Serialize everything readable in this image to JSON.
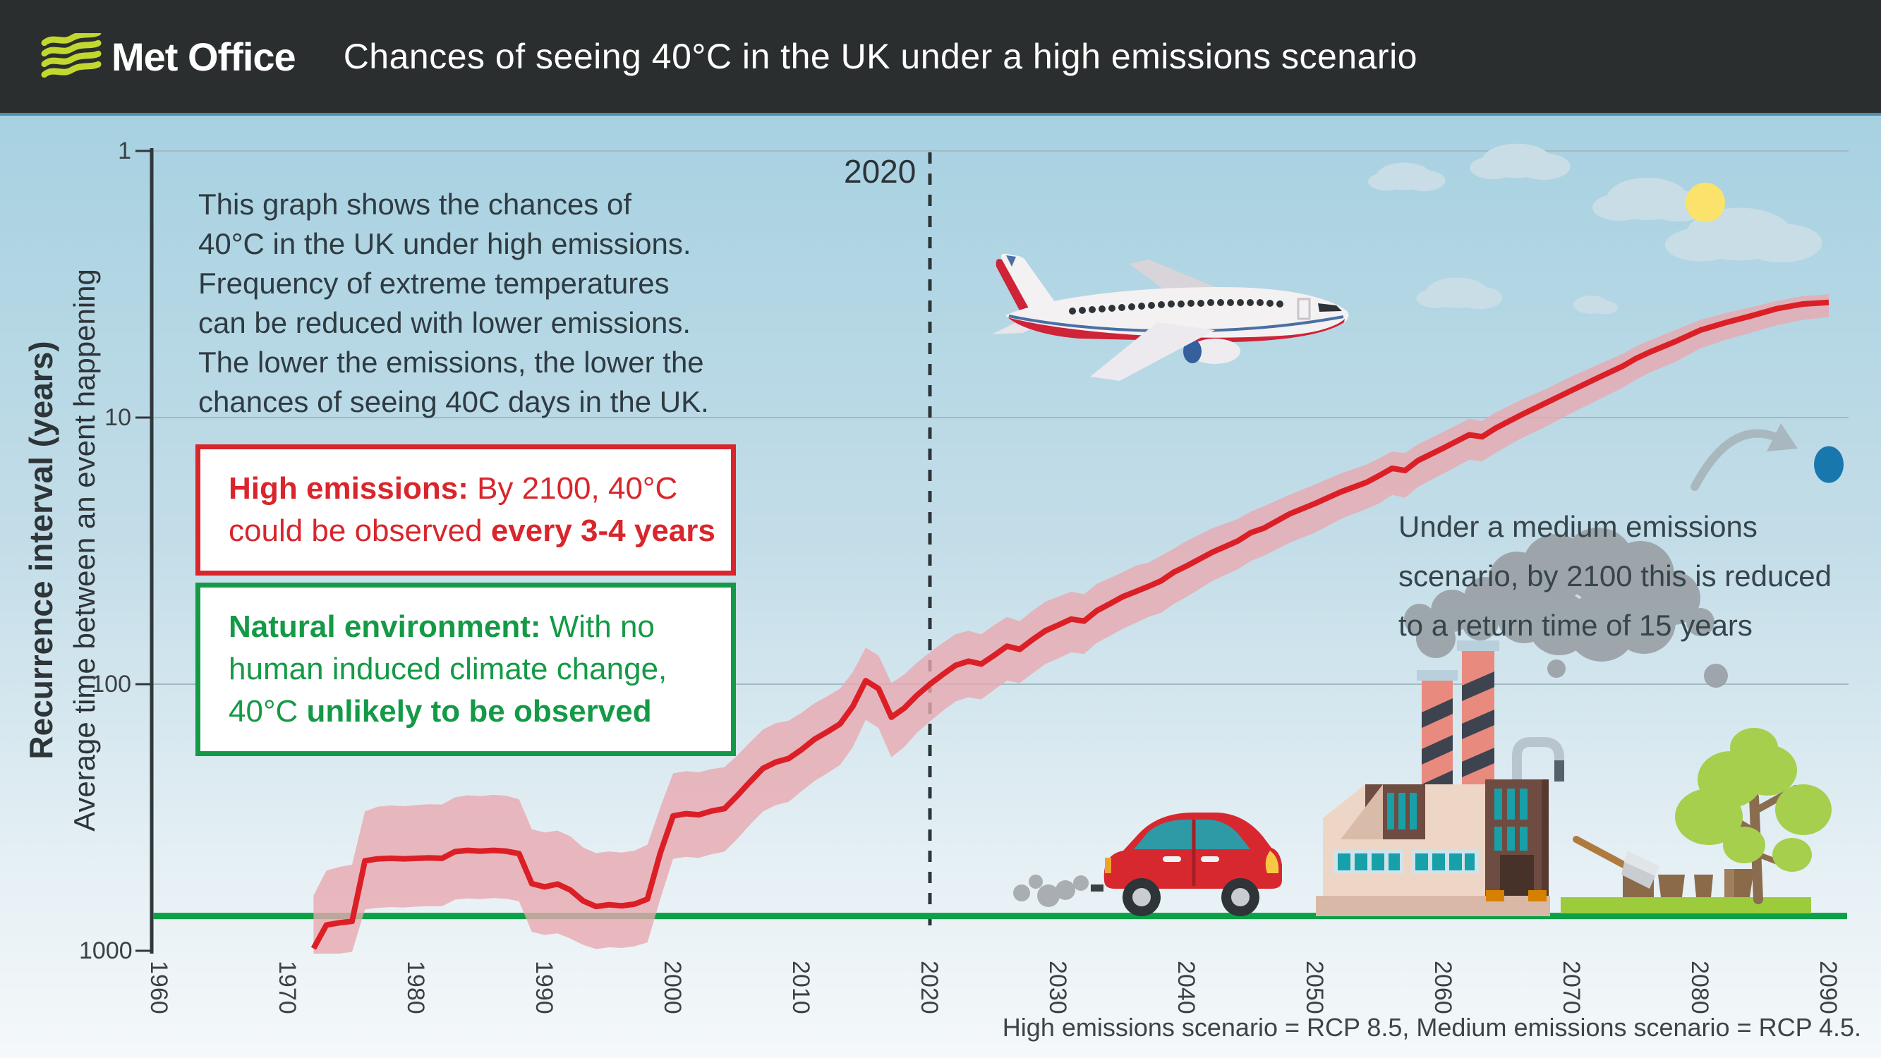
{
  "colors": {
    "header_bg": "#2b2e2f",
    "brand_lime": "#c3d82e",
    "accent_red": "#dc1f26",
    "band_pink": "#e8a9b0",
    "natural_green": "#0aa147",
    "box_green": "#149a46",
    "blue_dot": "#1878ad",
    "arrow_gray": "#a9b7bf",
    "text_dark": "#2f3b42",
    "gridline": "#a3bac2",
    "sky_top": "#a7d1e1",
    "sky_bottom": "#f4f8fa"
  },
  "header": {
    "brand": "Met Office",
    "title": "Chances of seeing 40°C in the UK under a high emissions scenario"
  },
  "chart_data": {
    "type": "line",
    "title": "Chances of seeing 40°C in the UK under a high emissions scenario",
    "ylabel": "Recurrence interval (years)",
    "ylabel2": "Average time between an event happening",
    "y_scale": "log (inverted: 1 at top, 1000 at bottom)",
    "ylim": [
      1,
      1000
    ],
    "y_ticks": [
      1,
      10,
      100,
      1000
    ],
    "x_ticks": [
      1960,
      1970,
      1980,
      1990,
      2000,
      2010,
      2020,
      2030,
      2040,
      2050,
      2060,
      2070,
      2080,
      2090
    ],
    "xlim": [
      1960,
      2094
    ],
    "grid": "horizontal lines at 1, 10, 100",
    "legend_position": "none",
    "reference_year_line": {
      "x": 2020,
      "label": "2020",
      "style": "dashed"
    },
    "series": [
      {
        "name": "High emissions (RCP 8.5) return period of 40°C in the UK",
        "color": "#dc1f26",
        "band_color": "#e8a9b0",
        "points_format": [
          "year",
          "return_period_years",
          "band_min_years",
          "band_max_years"
        ],
        "points": [
          [
            1972,
            980,
            620,
            1050
          ],
          [
            1973,
            800,
            500,
            1050
          ],
          [
            1974,
            785,
            485,
            1030
          ],
          [
            1975,
            775,
            475,
            1010
          ],
          [
            1976,
            460,
            300,
            700
          ],
          [
            1977,
            452,
            288,
            690
          ],
          [
            1978,
            450,
            285,
            686
          ],
          [
            1979,
            452,
            287,
            688
          ],
          [
            1980,
            450,
            284,
            683
          ],
          [
            1981,
            448,
            282,
            680
          ],
          [
            1982,
            450,
            283,
            681
          ],
          [
            1983,
            425,
            266,
            643
          ],
          [
            1984,
            420,
            261,
            636
          ],
          [
            1985,
            423,
            263,
            640
          ],
          [
            1986,
            420,
            260,
            634
          ],
          [
            1987,
            423,
            262,
            638
          ],
          [
            1988,
            432,
            270,
            652
          ],
          [
            1989,
            560,
            350,
            850
          ],
          [
            1990,
            576,
            360,
            872
          ],
          [
            1991,
            562,
            354,
            860
          ],
          [
            1992,
            592,
            372,
            900
          ],
          [
            1993,
            650,
            410,
            950
          ],
          [
            1994,
            682,
            430,
            985
          ],
          [
            1995,
            672,
            424,
            970
          ],
          [
            1996,
            678,
            428,
            976
          ],
          [
            1997,
            668,
            421,
            962
          ],
          [
            1998,
            640,
            400,
            930
          ],
          [
            1999,
            430,
            290,
            640
          ],
          [
            2000,
            312,
            216,
            452
          ],
          [
            2001,
            306,
            212,
            444
          ],
          [
            2002,
            309,
            214,
            448
          ],
          [
            2003,
            299,
            208,
            434
          ],
          [
            2004,
            293,
            205,
            425
          ],
          [
            2005,
            262,
            185,
            380
          ],
          [
            2006,
            232,
            165,
            336
          ],
          [
            2007,
            207,
            148,
            300
          ],
          [
            2008,
            196,
            140,
            284
          ],
          [
            2009,
            190,
            137,
            276
          ],
          [
            2010,
            176,
            128,
            252
          ],
          [
            2011,
            161,
            118,
            231
          ],
          [
            2012,
            151,
            111,
            216
          ],
          [
            2013,
            141,
            104,
            201
          ],
          [
            2014,
            121,
            90,
            172
          ],
          [
            2015,
            97,
            73,
            136
          ],
          [
            2016,
            104,
            78,
            146
          ],
          [
            2017,
            133,
            99,
            188
          ],
          [
            2018,
            123,
            92,
            172
          ],
          [
            2019,
            110,
            83,
            152
          ],
          [
            2020,
            100,
            76,
            138
          ],
          [
            2021,
            92,
            70,
            126
          ],
          [
            2022,
            85,
            65,
            116
          ],
          [
            2023,
            82,
            63,
            112
          ],
          [
            2024,
            84,
            65,
            114
          ],
          [
            2025,
            78,
            60,
            105
          ],
          [
            2026,
            72,
            56,
            97
          ],
          [
            2027,
            74,
            58,
            99
          ],
          [
            2028,
            68,
            53,
            91
          ],
          [
            2029,
            63,
            49,
            84
          ],
          [
            2030,
            60,
            47,
            80
          ],
          [
            2031,
            57,
            45,
            76
          ],
          [
            2032,
            58,
            46,
            77
          ],
          [
            2033,
            53,
            42,
            70
          ],
          [
            2034,
            50,
            40,
            66
          ],
          [
            2035,
            47,
            38,
            62
          ],
          [
            2036,
            45,
            36,
            59
          ],
          [
            2037,
            43,
            35,
            56
          ],
          [
            2038,
            41,
            33,
            54
          ],
          [
            2039,
            38,
            31,
            50
          ],
          [
            2040,
            36,
            29,
            47
          ],
          [
            2042,
            32,
            26,
            41
          ],
          [
            2044,
            29,
            24,
            37
          ],
          [
            2045,
            27,
            22.5,
            34.5
          ],
          [
            2046,
            26,
            21.5,
            33
          ],
          [
            2048,
            23,
            19.5,
            29.5
          ],
          [
            2050,
            21,
            17.8,
            27
          ],
          [
            2052,
            19,
            16.2,
            24
          ],
          [
            2054,
            17.5,
            15,
            22
          ],
          [
            2055,
            16.5,
            14.2,
            21
          ],
          [
            2056,
            15.5,
            13.4,
            19.5
          ],
          [
            2057,
            15.8,
            13.6,
            20
          ],
          [
            2058,
            14.5,
            12.6,
            18.2
          ],
          [
            2060,
            13,
            11.3,
            16.2
          ],
          [
            2062,
            11.6,
            10.1,
            14.4
          ],
          [
            2063,
            11.8,
            10.3,
            14.6
          ],
          [
            2064,
            11,
            9.6,
            13.6
          ],
          [
            2066,
            9.8,
            8.6,
            12
          ],
          [
            2068,
            8.8,
            7.8,
            10.8
          ],
          [
            2070,
            7.9,
            7,
            9.6
          ],
          [
            2072,
            7.1,
            6.35,
            8.6
          ],
          [
            2074,
            6.4,
            5.75,
            7.7
          ],
          [
            2075,
            6,
            5.4,
            7.2
          ],
          [
            2076,
            5.7,
            5.15,
            6.8
          ],
          [
            2078,
            5.2,
            4.7,
            6.2
          ],
          [
            2080,
            4.7,
            4.3,
            5.5
          ],
          [
            2082,
            4.4,
            4.05,
            5.1
          ],
          [
            2084,
            4.15,
            3.85,
            4.8
          ],
          [
            2086,
            3.9,
            3.65,
            4.5
          ],
          [
            2088,
            3.75,
            3.5,
            4.3
          ],
          [
            2090,
            3.7,
            3.45,
            4.2
          ]
        ]
      },
      {
        "name": "Natural environment (no human induced climate change)",
        "type": "horizontal-line",
        "value_years": 740,
        "color": "#0aa147"
      },
      {
        "name": "Medium emissions (RCP 4.5) by 2100",
        "type": "point",
        "year": 2090,
        "value_years": 15,
        "color": "#1878ad"
      }
    ]
  },
  "annotations": {
    "intro": {
      "lines": [
        "This graph shows the chances of",
        "40°C in the UK under high emissions.",
        "Frequency of extreme temperatures",
        "can be reduced with lower emissions.",
        "The lower the emissions, the lower the",
        "chances of seeing 40C days in the UK."
      ]
    },
    "high_box": {
      "lead": "High emissions:",
      "line1_rest": " By 2100, 40°C",
      "line2_normal": "could be observed ",
      "line2_bold": "every 3-4 years"
    },
    "natural_box": {
      "lead": "Natural environment:",
      "line1_rest": " With no",
      "line2": "human induced climate change,",
      "line3_normal": "40°C ",
      "line3_bold": "unlikely to be observed"
    },
    "medium_note": {
      "lines": [
        "Under a medium emissions",
        "scenario, by 2100 this is reduced",
        "to a return time of 15 years"
      ]
    },
    "year_marker": "2020",
    "footnote": "High emissions scenario = RCP 8.5, Medium emissions scenario = RCP 4.5."
  }
}
